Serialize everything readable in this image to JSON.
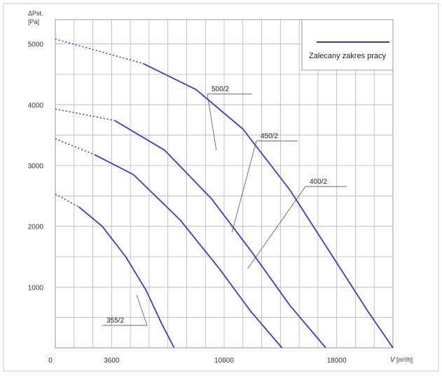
{
  "chart_data": {
    "type": "line",
    "ylabel": "ΔPst.",
    "ylabel_unit": "[Pa]",
    "xlabel": "V",
    "xlabel_unit": "[m³/h]",
    "xlim": [
      0,
      21600
    ],
    "ylim": [
      0,
      5400
    ],
    "x_ticks": [
      0,
      3600,
      10800,
      18000
    ],
    "x_tick_labels": [
      "0",
      "3600",
      "10800",
      "18000"
    ],
    "y_ticks": [
      1000,
      2000,
      3000,
      4000,
      5000
    ],
    "y_tick_labels": [
      "1000",
      "2000",
      "3000",
      "4000",
      "5000"
    ],
    "grid": true,
    "legend_position": "top-right",
    "legend_label": "Zalecany zakres pracy",
    "line_color": "#3a3ad6",
    "series": [
      {
        "name": "355/2",
        "dashed_points": [
          [
            0,
            2530
          ],
          [
            1500,
            2320
          ]
        ],
        "points": [
          [
            1500,
            2320
          ],
          [
            3000,
            2000
          ],
          [
            4500,
            1500
          ],
          [
            5800,
            950
          ],
          [
            6800,
            400
          ],
          [
            7600,
            0
          ]
        ]
      },
      {
        "name": "400/2",
        "dashed_points": [
          [
            0,
            3440
          ],
          [
            2500,
            3180
          ]
        ],
        "points": [
          [
            2500,
            3180
          ],
          [
            5000,
            2850
          ],
          [
            8000,
            2100
          ],
          [
            10500,
            1300
          ],
          [
            12500,
            600
          ],
          [
            14500,
            0
          ]
        ]
      },
      {
        "name": "450/2",
        "dashed_points": [
          [
            0,
            3930
          ],
          [
            3800,
            3740
          ]
        ],
        "points": [
          [
            3800,
            3740
          ],
          [
            7000,
            3250
          ],
          [
            10000,
            2450
          ],
          [
            12500,
            1600
          ],
          [
            15000,
            700
          ],
          [
            17300,
            0
          ]
        ]
      },
      {
        "name": "500/2",
        "dashed_points": [
          [
            0,
            5080
          ],
          [
            5600,
            4680
          ]
        ],
        "points": [
          [
            5600,
            4680
          ],
          [
            9000,
            4250
          ],
          [
            12000,
            3600
          ],
          [
            15000,
            2600
          ],
          [
            17500,
            1600
          ],
          [
            20000,
            600
          ],
          [
            22300,
            0
          ]
        ]
      }
    ],
    "annotations": [
      {
        "label": "500/2",
        "anchor": [
          10300,
          3250
        ]
      },
      {
        "label": "450/2",
        "anchor": [
          11300,
          1900
        ]
      },
      {
        "label": "400/2",
        "anchor": [
          12300,
          1300
        ]
      },
      {
        "label": "355/2",
        "anchor": [
          5200,
          870
        ]
      }
    ]
  }
}
